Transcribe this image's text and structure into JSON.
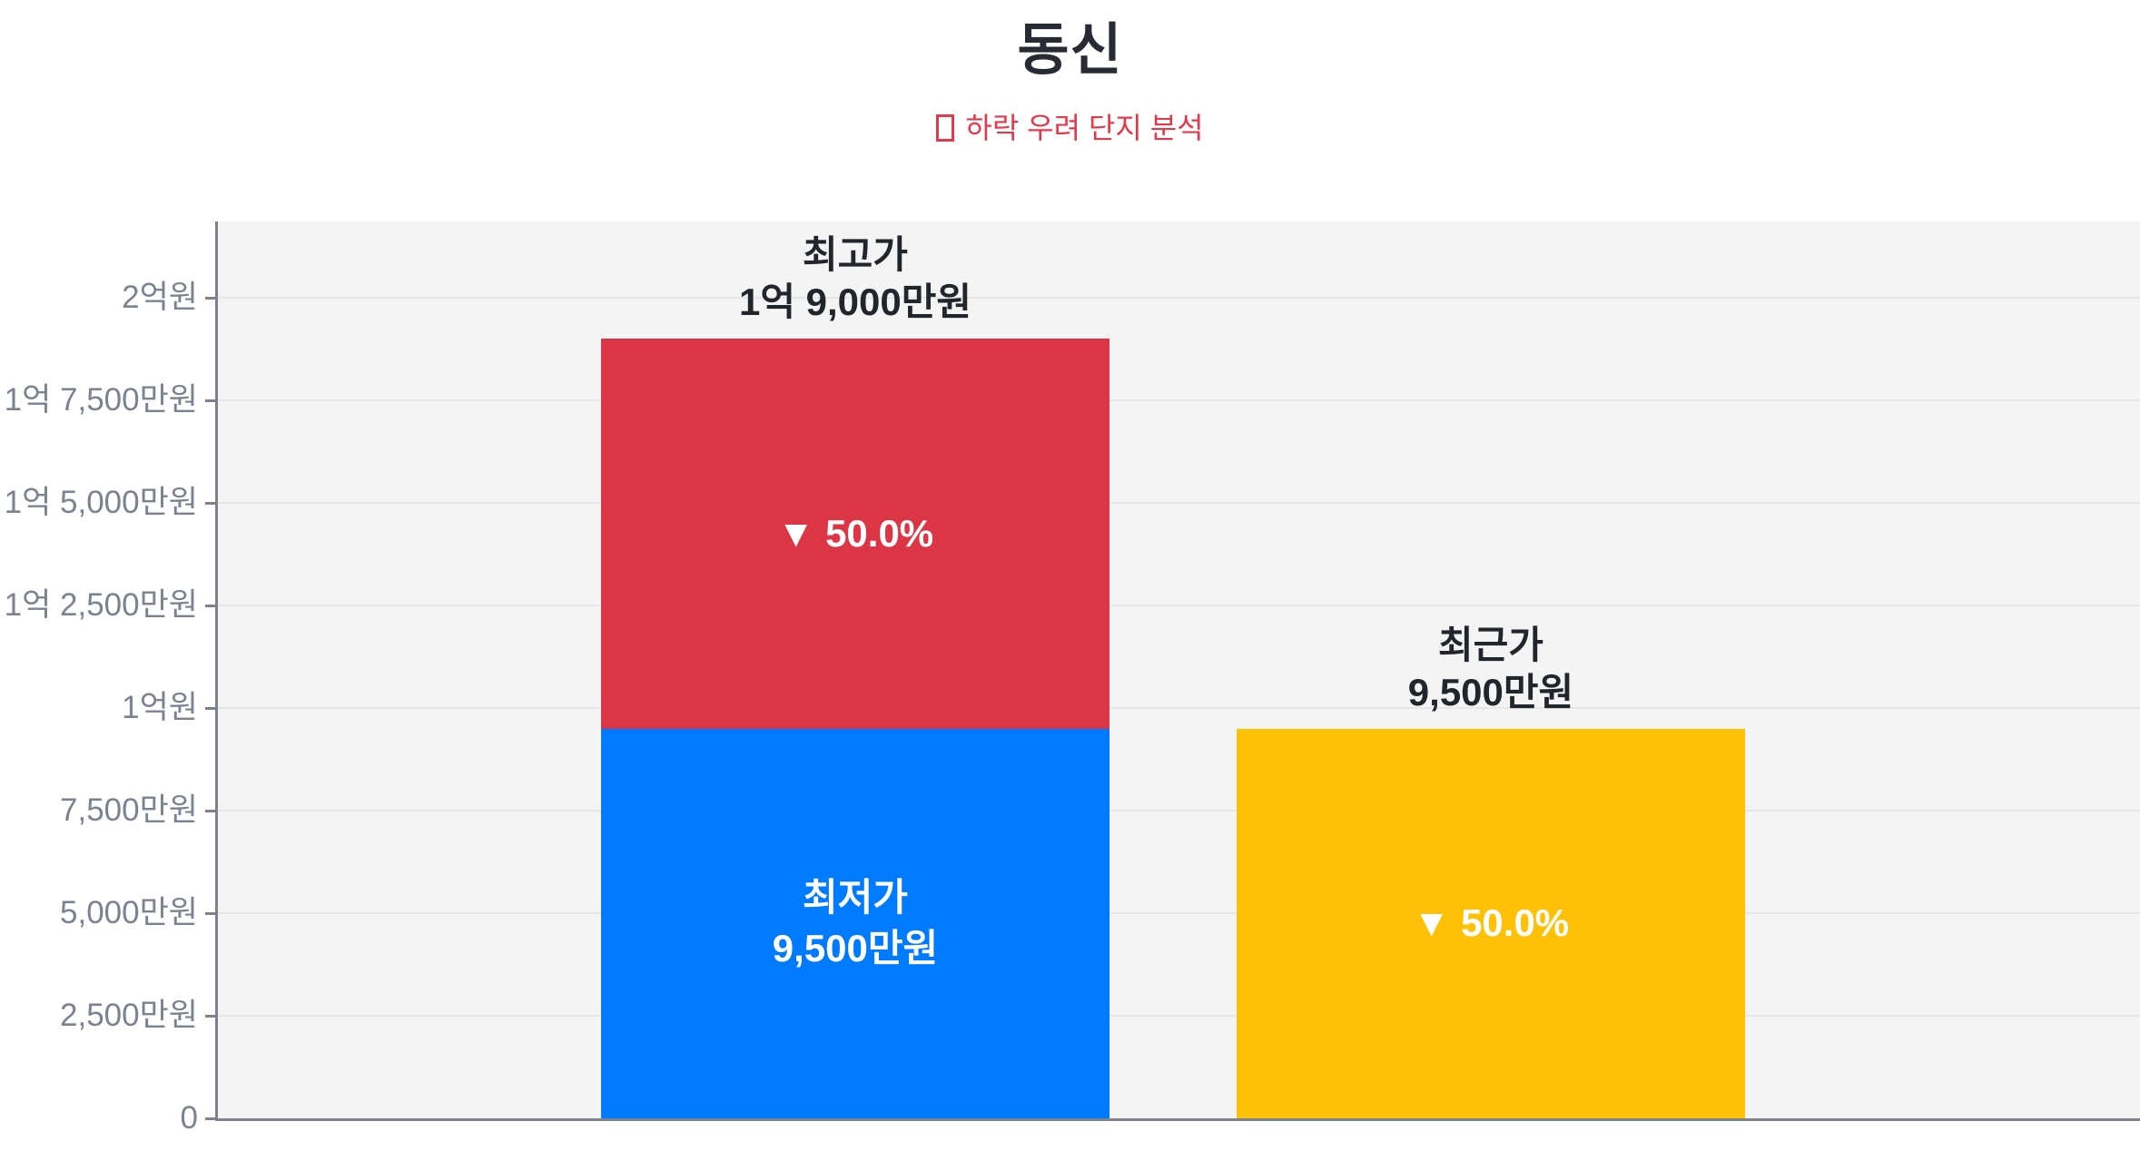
{
  "title": "동신",
  "subtitle": {
    "marker_icon": "outlined-square",
    "text": "하락 우려 단지 분석"
  },
  "colors": {
    "title_text": "#272c34",
    "subtitle_red": "#e5394b",
    "plot_bg": "#f4f4f4",
    "grid_line": "#e7e7e7",
    "axis_line": "#7d828b",
    "axis_label": "#7b8290",
    "bar_label_dark": "#21252c",
    "bar_label_light": "#ffffff",
    "bar_blue": "#007bff",
    "bar_red": "#dc3545",
    "bar_yellow": "#ffc107"
  },
  "chart_data": {
    "type": "bar",
    "stacked": true,
    "title": "동신",
    "subtitle": "□ 하락 우려 단지 분석",
    "unit": "만원 (KRW 10,000)",
    "ylim": [
      0,
      21860
    ],
    "grid": true,
    "legend": "none",
    "y_ticks": [
      {
        "value": 20000,
        "label": "2억원"
      },
      {
        "value": 17500,
        "label": "1억 7,500만원"
      },
      {
        "value": 15000,
        "label": "1억 5,000만원"
      },
      {
        "value": 12500,
        "label": "1억 2,500만원"
      },
      {
        "value": 10000,
        "label": "1억원"
      },
      {
        "value": 7500,
        "label": "7,500만원"
      },
      {
        "value": 5000,
        "label": "5,000만원"
      },
      {
        "value": 2500,
        "label": "2,500만원"
      },
      {
        "value": 0,
        "label": "0"
      }
    ],
    "bars": [
      {
        "key": "price-history",
        "top_label_lines": [
          "최고가",
          "1억 9,000만원"
        ],
        "total_value": 19000,
        "segments": [
          {
            "key": "lowest-price",
            "value": 9500,
            "color_key": "bar_blue",
            "label_lines": [
              "최저가",
              "9,500만원"
            ]
          },
          {
            "key": "drop-range",
            "value": 9500,
            "color_key": "bar_red",
            "label_lines": [
              "▼ 50.0%"
            ]
          }
        ]
      },
      {
        "key": "recent-price",
        "top_label_lines": [
          "최근가",
          "9,500만원"
        ],
        "total_value": 9500,
        "segments": [
          {
            "key": "recent-price",
            "value": 9500,
            "color_key": "bar_yellow",
            "label_lines": [
              "▼ 50.0%"
            ]
          }
        ]
      }
    ]
  }
}
